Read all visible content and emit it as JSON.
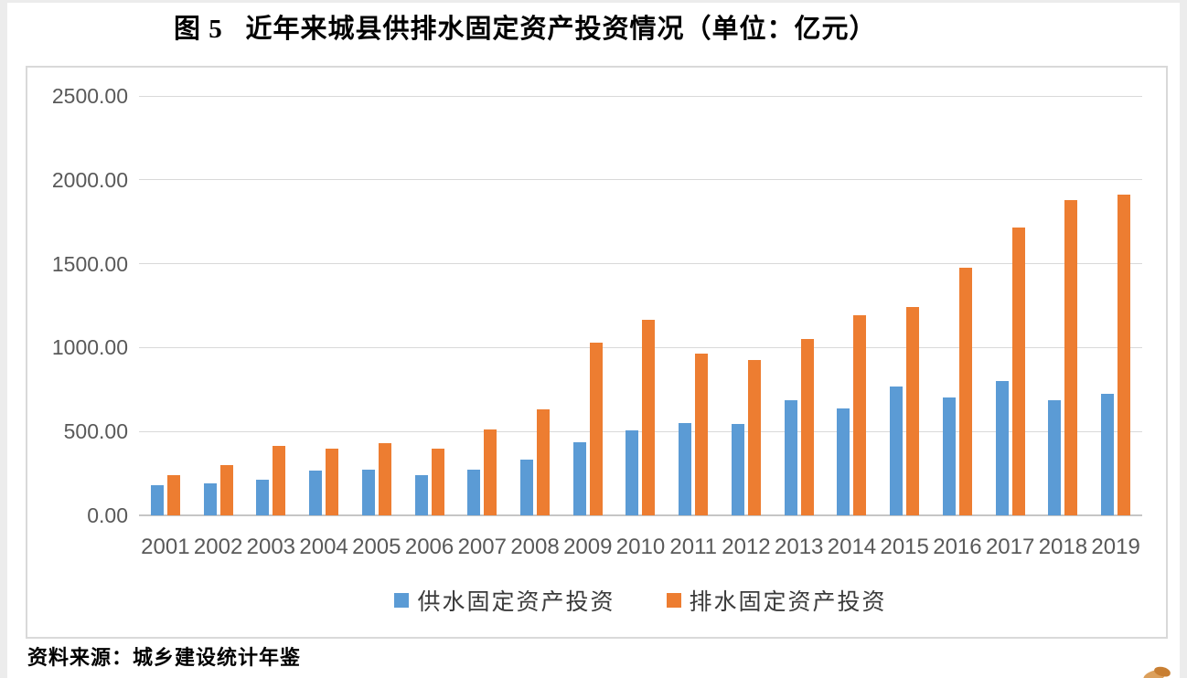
{
  "title": "图 5   近年来城县供排水固定资产投资情况（单位：亿元）",
  "source": "资料来源：城乡建设统计年鉴",
  "colors": {
    "series_blue": "#5B9BD5",
    "series_orange": "#ED7D31",
    "gridline": "#D9D9D9",
    "tick_text": "#595959"
  },
  "chart_data": {
    "type": "bar",
    "title": "图 5 近年来城县供排水固定资产投资情况（单位：亿元）",
    "xlabel": "",
    "ylabel": "",
    "unit": "亿元",
    "ylim": [
      0,
      2500
    ],
    "grid": true,
    "legend_position": "bottom",
    "categories": [
      "2001",
      "2002",
      "2003",
      "2004",
      "2005",
      "2006",
      "2007",
      "2008",
      "2009",
      "2010",
      "2011",
      "2012",
      "2013",
      "2014",
      "2015",
      "2016",
      "2017",
      "2018",
      "2019"
    ],
    "ytick_values": [
      0,
      500,
      1000,
      1500,
      2000,
      2500
    ],
    "ytick_labels": [
      "0.00",
      "500.00",
      "1000.00",
      "1500.00",
      "2000.00",
      "2500.00"
    ],
    "series": [
      {
        "name": "供水固定资产投资",
        "key": "water-supply",
        "color": "#5B9BD5",
        "values": [
          180,
          189,
          213,
          266,
          274,
          242,
          274,
          334,
          434,
          505,
          550,
          543,
          688,
          636,
          768,
          700,
          800,
          685,
          722
        ]
      },
      {
        "name": "排水固定资产投资",
        "key": "drainage",
        "color": "#ED7D31",
        "values": [
          238,
          298,
          414,
          400,
          428,
          398,
          512,
          630,
          1030,
          1165,
          965,
          928,
          1050,
          1192,
          1243,
          1475,
          1715,
          1880,
          1911
        ]
      }
    ]
  }
}
